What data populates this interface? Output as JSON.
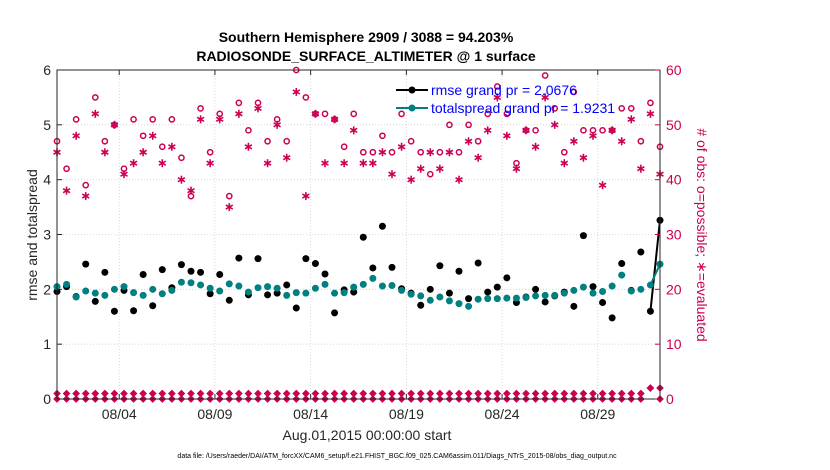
{
  "chart_data": {
    "type": "line",
    "title_line1": "Southern Hemisphere 2909 / 3088 = 94.203%",
    "title_line2": "RADIOSONDE_SURFACE_ALTIMETER @ 1 surface",
    "xlabel": "Aug.01,2015 00:00:00 start",
    "ylabel_left": "rmse and totalspread",
    "ylabel_right": "# of obs: o=possible; ∗=evaluated",
    "ylim_left": [
      0,
      6
    ],
    "ylim_right": [
      0,
      60
    ],
    "xlim": [
      0.25,
      31.75
    ],
    "yticks_left": [
      0,
      1,
      2,
      3,
      4,
      5,
      6
    ],
    "yticks_right": [
      0,
      10,
      20,
      30,
      40,
      50,
      60
    ],
    "x_ticks": [
      {
        "x": 3.5,
        "label": "08/04"
      },
      {
        "x": 8.5,
        "label": "08/09"
      },
      {
        "x": 13.5,
        "label": "08/14"
      },
      {
        "x": 18.5,
        "label": "08/19"
      },
      {
        "x": 23.5,
        "label": "08/24"
      },
      {
        "x": 28.5,
        "label": "08/29"
      }
    ],
    "x": [
      0.25,
      0.75,
      1.25,
      1.75,
      2.25,
      2.75,
      3.25,
      3.75,
      4.25,
      4.75,
      5.25,
      5.75,
      6.25,
      6.75,
      7.25,
      7.75,
      8.25,
      8.75,
      9.25,
      9.75,
      10.25,
      10.75,
      11.25,
      11.75,
      12.25,
      12.75,
      13.25,
      13.75,
      14.25,
      14.75,
      15.25,
      15.75,
      16.25,
      16.75,
      17.25,
      17.75,
      18.25,
      18.75,
      19.25,
      19.75,
      20.25,
      20.75,
      21.25,
      21.75,
      22.25,
      22.75,
      23.25,
      23.75,
      24.25,
      24.75,
      25.25,
      25.75,
      26.25,
      26.75,
      27.25,
      27.75,
      28.25,
      28.75,
      29.25,
      29.75,
      30.25,
      30.75,
      31.25,
      31.75
    ],
    "series": [
      {
        "name": "rmse",
        "legend": "rmse grand pr = 2.0676",
        "color": "#000000",
        "values": [
          1.96,
          2.05,
          1.87,
          2.46,
          1.78,
          2.31,
          1.6,
          1.98,
          1.61,
          2.27,
          1.7,
          2.36,
          2.03,
          2.45,
          2.33,
          2.31,
          1.92,
          2.27,
          1.8,
          2.57,
          1.9,
          2.56,
          1.9,
          1.93,
          2.08,
          1.66,
          2.56,
          2.47,
          2.28,
          1.57,
          1.99,
          1.95,
          2.95,
          2.39,
          3.15,
          2.4,
          2.01,
          1.93,
          1.71,
          2.0,
          2.43,
          1.93,
          2.33,
          1.83,
          2.48,
          1.95,
          2.04,
          2.21,
          1.76,
          1.86,
          2.0,
          1.77,
          1.88,
          1.95,
          1.69,
          2.98,
          2.05,
          1.76,
          1.48,
          2.47,
          1.98,
          2.68,
          1.6,
          3.26
        ]
      },
      {
        "name": "totalspread",
        "legend": "totalspread grand pr = 1.9231",
        "color": "#008080",
        "values": [
          2.05,
          2.09,
          1.86,
          1.97,
          1.93,
          1.89,
          2.0,
          2.05,
          1.94,
          1.89,
          2.0,
          1.92,
          1.98,
          2.13,
          2.12,
          2.08,
          2.02,
          1.97,
          2.1,
          2.06,
          1.95,
          2.03,
          2.05,
          2.02,
          1.89,
          1.94,
          1.93,
          2.02,
          2.09,
          1.93,
          1.94,
          2.04,
          2.09,
          2.2,
          2.06,
          2.07,
          1.98,
          1.91,
          1.88,
          1.8,
          1.86,
          1.79,
          1.74,
          1.69,
          1.82,
          1.83,
          1.83,
          1.84,
          1.84,
          1.85,
          1.88,
          1.89,
          1.89,
          1.93,
          1.98,
          2.04,
          1.93,
          1.96,
          2.06,
          2.26,
          1.97,
          2.0,
          2.08,
          2.46
        ]
      },
      {
        "name": "possible",
        "color": "#cc0052",
        "values": [
          47,
          42,
          51,
          39,
          55,
          47,
          50,
          42,
          51,
          48,
          51,
          46,
          51,
          44,
          37,
          53,
          45,
          52,
          37,
          54,
          49,
          54,
          47,
          51,
          47,
          60,
          55,
          52,
          52,
          51,
          46,
          52,
          45,
          45,
          48,
          45,
          52,
          47,
          45,
          41,
          45,
          50,
          45,
          50,
          47,
          52,
          57,
          52,
          43,
          49,
          49,
          59,
          53,
          45,
          56,
          49,
          49,
          49,
          49,
          53,
          53,
          47,
          54,
          46
        ]
      },
      {
        "name": "evaluated",
        "color": "#cc0052",
        "values": [
          45,
          38,
          48,
          37,
          52,
          45,
          50,
          41,
          43,
          45,
          48,
          43,
          46,
          40,
          38,
          51,
          43,
          51,
          35,
          52,
          46,
          53,
          43,
          50,
          44,
          56,
          37,
          52,
          43,
          51,
          43,
          49,
          43,
          43,
          45,
          41,
          46,
          40,
          42,
          45,
          42,
          45,
          40,
          47,
          44,
          49,
          55,
          48,
          42,
          49,
          46,
          55,
          50,
          43,
          47,
          44,
          48,
          39,
          49,
          47,
          51,
          42,
          52,
          41
        ]
      },
      {
        "name": "possible-bottom",
        "color": "#cc0052",
        "values": [
          1,
          1,
          1,
          1,
          1,
          1,
          1,
          1,
          1,
          1,
          1,
          1,
          1,
          1,
          1,
          1,
          1,
          1,
          1,
          1,
          1,
          1,
          1,
          1,
          1,
          1,
          1,
          1,
          1,
          1,
          1,
          1,
          1,
          1,
          1,
          1,
          1,
          1,
          1,
          1,
          1,
          1,
          1,
          1,
          1,
          1,
          1,
          1,
          1,
          1,
          1,
          1,
          1,
          1,
          1,
          1,
          1,
          1,
          1,
          1,
          1,
          1,
          2,
          2
        ]
      },
      {
        "name": "evaluated-bottom",
        "color": "#cc0052",
        "values": [
          0,
          0,
          0,
          0,
          0,
          0,
          0,
          0,
          0,
          0,
          0,
          0,
          0,
          0,
          0,
          0,
          0,
          0,
          0,
          0,
          0,
          0,
          0,
          0,
          0,
          0,
          0,
          0,
          0,
          0,
          0,
          0,
          0,
          0,
          0,
          0,
          0,
          0,
          0,
          0,
          0,
          0,
          0,
          0,
          0,
          0,
          0,
          0,
          0,
          0,
          0,
          0,
          0,
          0,
          0,
          0,
          0,
          0,
          0,
          0,
          0,
          0,
          2,
          0
        ]
      }
    ],
    "footer": "data file: /Users/raeder/DAI/ATM_forcXX/CAM6_setup/f.e21.FHIST_BGC.f09_025.CAM6assim.011/Diags_NTrS_2015-08/obs_diag_output.nc",
    "grid": true
  }
}
